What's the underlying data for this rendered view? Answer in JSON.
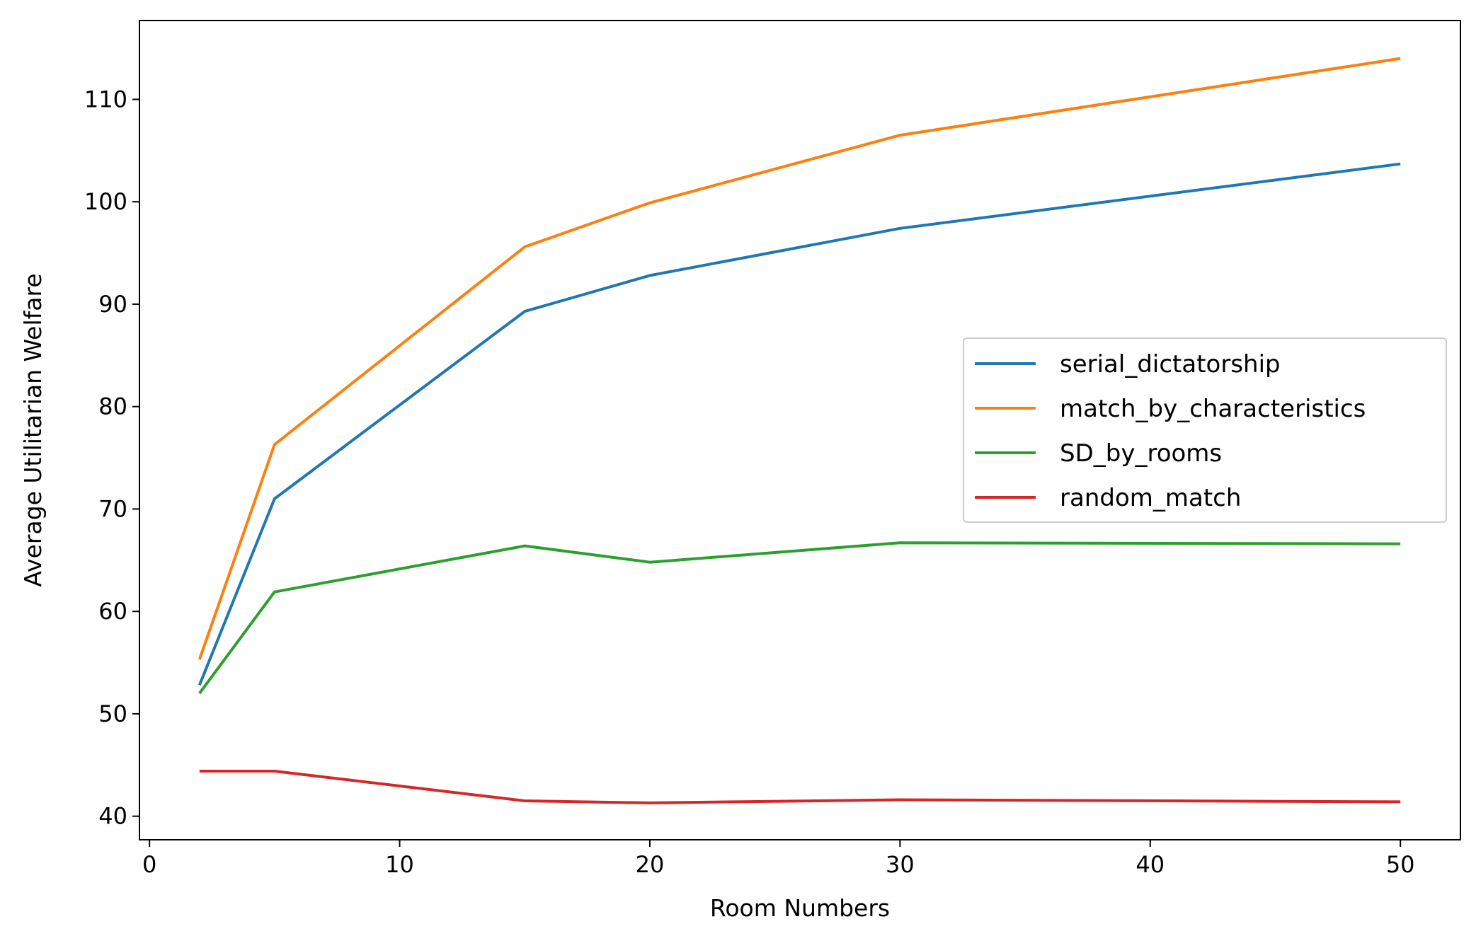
{
  "chart_data": {
    "type": "line",
    "title": "",
    "xlabel": "Room Numbers",
    "ylabel": "Average Utilitarian Welfare",
    "xlim": [
      -0.4,
      52.4
    ],
    "ylim": [
      37.7,
      117.7
    ],
    "x_ticks": [
      0,
      10,
      20,
      30,
      40,
      50
    ],
    "y_ticks": [
      40,
      50,
      60,
      70,
      80,
      90,
      100,
      110
    ],
    "grid": false,
    "legend_position": "center-right",
    "x": [
      2,
      5,
      15,
      20,
      30,
      50
    ],
    "series": [
      {
        "name": "serial_dictatorship",
        "color": "#1f77b4",
        "values": [
          52.8,
          71.0,
          89.3,
          92.8,
          97.4,
          103.7
        ]
      },
      {
        "name": "match_by_characteristics",
        "color": "#ff7f0e",
        "values": [
          55.3,
          76.3,
          95.6,
          99.9,
          106.5,
          114.0
        ]
      },
      {
        "name": "SD_by_rooms",
        "color": "#2ca02c",
        "values": [
          52.0,
          61.9,
          66.4,
          64.8,
          66.7,
          66.6
        ]
      },
      {
        "name": "random_match",
        "color": "#d62728",
        "values": [
          44.4,
          44.4,
          41.5,
          41.3,
          41.6,
          41.4
        ]
      }
    ]
  }
}
